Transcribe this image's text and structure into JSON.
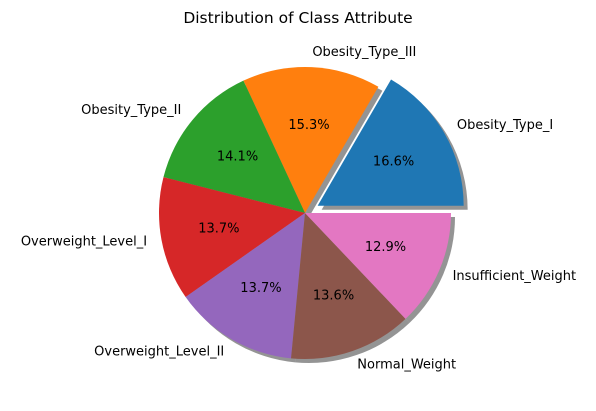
{
  "chart_data": {
    "type": "pie",
    "title": "Distribution of Class Attribute",
    "shadow": true,
    "start_angle_deg": 0,
    "direction": "counterclockwise",
    "exploded": [
      "Obesity_Type_I"
    ],
    "slices": [
      {
        "label": "Obesity_Type_I",
        "value": 16.6,
        "pct_label": "16.6%",
        "color": "#1f77b4"
      },
      {
        "label": "Obesity_Type_III",
        "value": 15.3,
        "pct_label": "15.3%",
        "color": "#ff7f0e"
      },
      {
        "label": "Obesity_Type_II",
        "value": 14.1,
        "pct_label": "14.1%",
        "color": "#2ca02c"
      },
      {
        "label": "Overweight_Level_I",
        "value": 13.7,
        "pct_label": "13.7%",
        "color": "#d62728"
      },
      {
        "label": "Overweight_Level_II",
        "value": 13.7,
        "pct_label": "13.7%",
        "color": "#9467bd"
      },
      {
        "label": "Normal_Weight",
        "value": 13.6,
        "pct_label": "13.6%",
        "color": "#8c564b"
      },
      {
        "label": "Insufficient_Weight",
        "value": 12.9,
        "pct_label": "12.9%",
        "color": "#e377c2"
      }
    ]
  }
}
